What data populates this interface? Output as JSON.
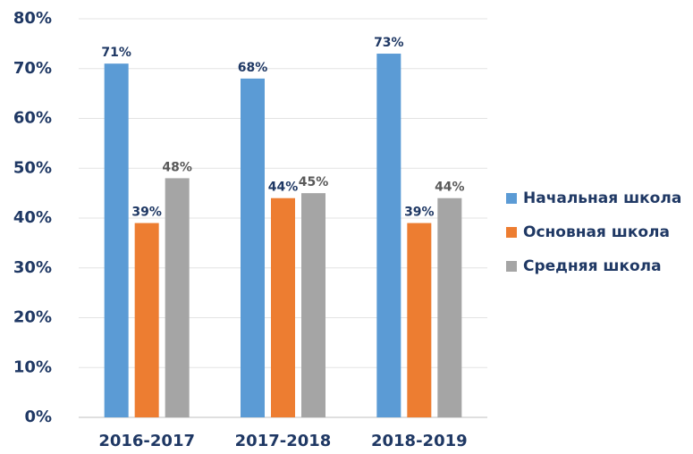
{
  "chart_data": {
    "type": "bar",
    "categories": [
      "2016-2017",
      "2017-2018",
      "2018-2019"
    ],
    "series": [
      {
        "name": "Начальная школа",
        "color": "#5b9bd5",
        "values": [
          71,
          68,
          73
        ],
        "value_labels": [
          "71%",
          "68%",
          "73%"
        ]
      },
      {
        "name": "Основная школа",
        "color": "#ed7d31",
        "values": [
          39,
          44,
          39
        ],
        "value_labels": [
          "39%",
          "44%",
          "39%"
        ]
      },
      {
        "name": "Средняя школа",
        "color": "#a5a5a5",
        "values": [
          48,
          45,
          44
        ],
        "value_labels": [
          "48%",
          "45%",
          "44%"
        ]
      }
    ],
    "ylim": [
      0,
      80
    ],
    "yticks": [
      {
        "value": 0,
        "label": "0%"
      },
      {
        "value": 10,
        "label": "10%"
      },
      {
        "value": 20,
        "label": "20%"
      },
      {
        "value": 30,
        "label": "30%"
      },
      {
        "value": 40,
        "label": "40%"
      },
      {
        "value": 50,
        "label": "50%"
      },
      {
        "value": 60,
        "label": "60%"
      },
      {
        "value": 70,
        "label": "70%"
      },
      {
        "value": 80,
        "label": "80%"
      }
    ],
    "grid": true,
    "legend": "right"
  }
}
